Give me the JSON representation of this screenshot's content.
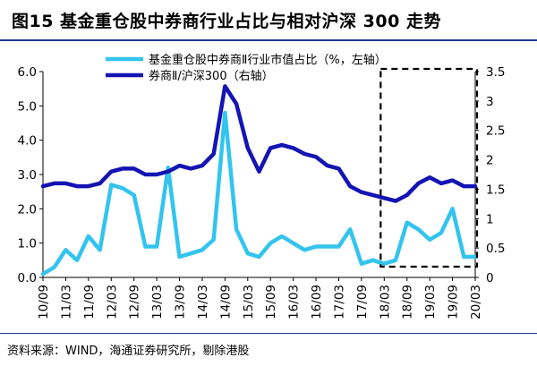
{
  "title": "图15 基金重仓股中券商行业占比与相对沪深 300 走势",
  "source": "资料来源：WIND，海通证券研究所，剔除港股",
  "colors": {
    "series1": "#33c4ee",
    "series2": "#1414b4",
    "frame": "#1f3a93"
  },
  "chart_data": {
    "type": "line",
    "x": [
      "10/09",
      "10/12",
      "11/03",
      "11/06",
      "11/09",
      "11/12",
      "12/03",
      "12/06",
      "12/09",
      "12/12",
      "13/03",
      "13/06",
      "13/09",
      "13/12",
      "14/03",
      "14/06",
      "14/09",
      "14/12",
      "15/03",
      "15/06",
      "15/09",
      "15/12",
      "16/03",
      "16/06",
      "16/09",
      "16/12",
      "17/03",
      "17/06",
      "17/09",
      "17/12",
      "18/03",
      "18/06",
      "18/09",
      "18/12",
      "19/03",
      "19/06",
      "19/09",
      "19/12",
      "20/03"
    ],
    "x_tick_labels": [
      "10/09",
      "11/03",
      "11/09",
      "12/03",
      "12/09",
      "13/03",
      "13/09",
      "14/03",
      "14/09",
      "15/03",
      "15/09",
      "16/03",
      "16/09",
      "17/03",
      "17/09",
      "18/03",
      "18/09",
      "19/03",
      "19/09",
      "20/03"
    ],
    "series": [
      {
        "name": "基金重仓股中券商Ⅱ行业市值占比（%，左轴）",
        "axis": "left",
        "values": [
          0.1,
          0.3,
          0.8,
          0.5,
          1.2,
          0.8,
          2.7,
          2.6,
          2.4,
          0.9,
          0.9,
          3.2,
          0.6,
          0.7,
          0.8,
          1.1,
          4.8,
          1.4,
          0.7,
          0.6,
          1.0,
          1.2,
          1.0,
          0.8,
          0.9,
          0.9,
          0.9,
          1.4,
          0.4,
          0.5,
          0.4,
          0.5,
          1.6,
          1.4,
          1.1,
          1.3,
          2.0,
          0.6,
          0.6
        ]
      },
      {
        "name": "券商Ⅱ/沪深300（右轴）",
        "axis": "right",
        "values": [
          1.55,
          1.6,
          1.6,
          1.55,
          1.55,
          1.6,
          1.8,
          1.85,
          1.85,
          1.75,
          1.75,
          1.8,
          1.9,
          1.85,
          1.9,
          2.1,
          3.25,
          2.95,
          2.2,
          1.8,
          2.2,
          2.25,
          2.2,
          2.1,
          2.05,
          1.9,
          1.85,
          1.55,
          1.45,
          1.4,
          1.35,
          1.3,
          1.4,
          1.6,
          1.7,
          1.6,
          1.65,
          1.55,
          1.55
        ]
      }
    ],
    "left_axis": {
      "ylim": [
        0.0,
        6.0
      ],
      "ticks": [
        "0.0",
        "1.0",
        "2.0",
        "3.0",
        "4.0",
        "5.0",
        "6.0"
      ]
    },
    "right_axis": {
      "ylim": [
        0.0,
        3.5
      ],
      "ticks": [
        "0",
        "0.5",
        "1",
        "1.5",
        "2",
        "2.5",
        "3",
        "3.5"
      ]
    },
    "highlight": {
      "x_from": "18/03",
      "x_to": "20/03",
      "style": "dashed-box"
    },
    "grid": false,
    "legend_position": "top"
  }
}
